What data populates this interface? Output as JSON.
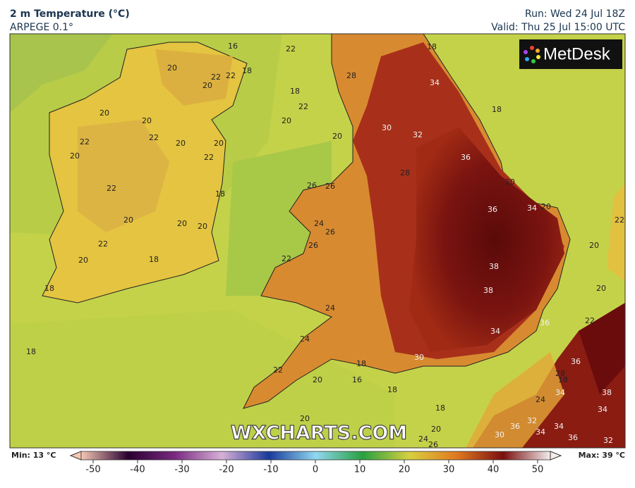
{
  "header": {
    "title": "2 m Temperature (°C)",
    "model": "ARPEGE 0.1°",
    "run": "Run: Wed 24 Jul 18Z",
    "valid": "Valid: Thu 25 Jul 15:00 UTC"
  },
  "logo": "MetDesk",
  "watermark": "WXCHARTS.COM",
  "map": {
    "contour_labels": [
      16,
      22,
      20,
      22,
      22,
      18,
      20,
      18,
      22,
      20,
      20,
      20,
      22,
      22,
      20,
      20,
      22,
      20,
      20,
      28,
      18,
      34,
      30,
      32,
      28,
      36,
      18,
      22,
      18,
      26,
      26,
      20,
      36,
      34,
      20,
      22,
      20,
      20,
      20,
      24,
      26,
      26,
      20,
      22,
      20,
      18,
      22,
      38,
      38,
      20,
      18,
      24,
      36,
      34,
      22,
      24,
      18,
      30,
      18,
      36,
      28,
      18,
      22,
      20,
      16,
      18,
      34,
      38,
      24,
      18,
      34,
      20,
      20,
      36,
      32,
      34,
      34,
      36,
      32,
      24,
      26,
      30
    ]
  },
  "colorbar": {
    "min_label": "Min: 13 °C",
    "max_label": "Max: 39 °C",
    "range": [
      -50,
      50
    ],
    "ticks": [
      -50,
      -40,
      -30,
      -20,
      -10,
      0,
      10,
      20,
      30,
      40,
      50
    ]
  }
}
